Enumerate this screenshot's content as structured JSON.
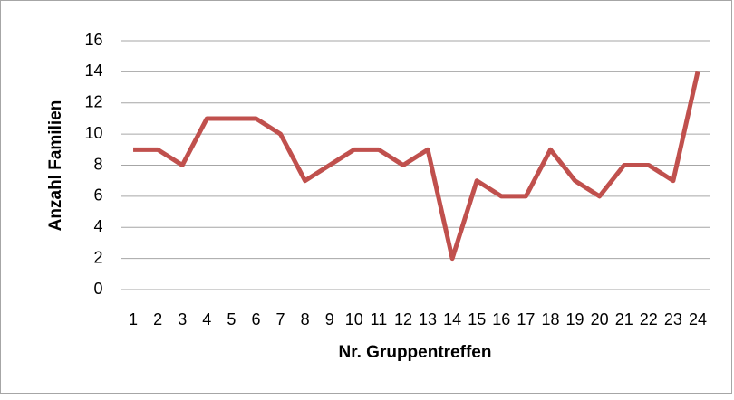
{
  "chart_data": {
    "type": "line",
    "x_label": "Nr. Gruppentreffen",
    "y_label": "Anzahl Familien",
    "categories": [
      "1",
      "2",
      "3",
      "4",
      "5",
      "6",
      "7",
      "8",
      "9",
      "10",
      "11",
      "12",
      "13",
      "14",
      "15",
      "16",
      "17",
      "18",
      "19",
      "20",
      "21",
      "22",
      "23",
      "24"
    ],
    "series": [
      {
        "name": "Anzahl Familien",
        "color": "#c0504d",
        "values": [
          9,
          9,
          8,
          11,
          11,
          11,
          10,
          7,
          8,
          9,
          9,
          8,
          9,
          2,
          7,
          6,
          6,
          9,
          7,
          6,
          8,
          8,
          7,
          14
        ]
      }
    ],
    "ylim": [
      0,
      16
    ],
    "yticks": [
      0,
      2,
      4,
      6,
      8,
      10,
      12,
      14,
      16
    ],
    "grid": true
  }
}
